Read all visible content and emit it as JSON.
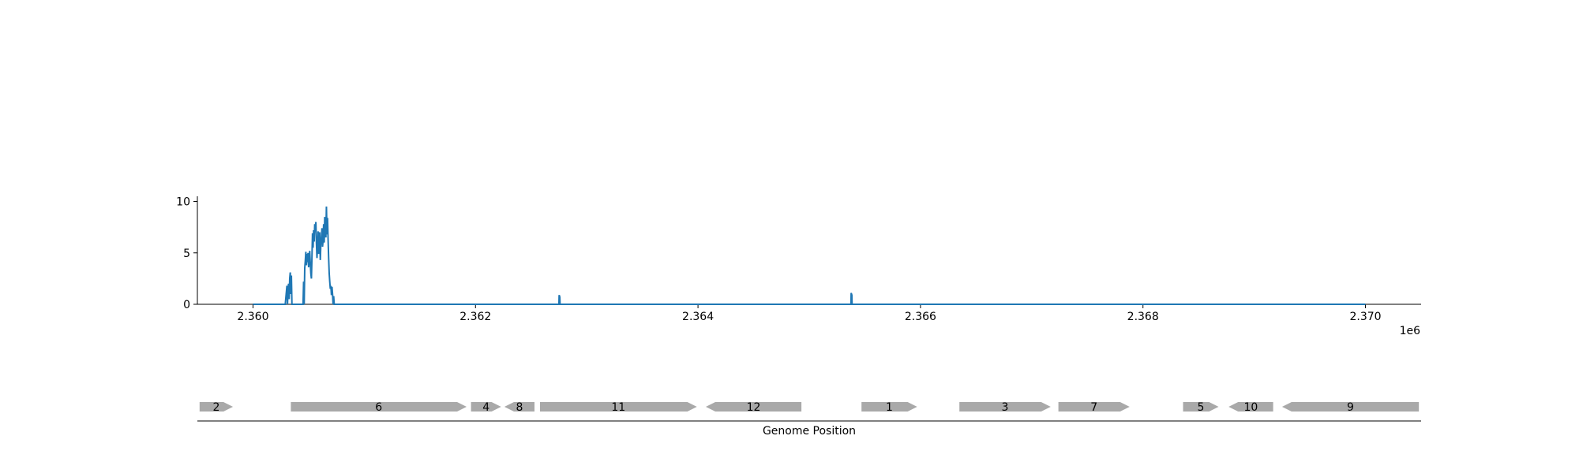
{
  "chart_data": {
    "type": "line",
    "title": "",
    "xlabel": "Genome Position",
    "ylabel": "",
    "x_offset_label": "1e6",
    "xlim": [
      2359500,
      2370500
    ],
    "ylim": [
      0,
      10.5
    ],
    "x_ticks": [
      2360000,
      2362000,
      2364000,
      2366000,
      2368000,
      2370000
    ],
    "x_tick_labels": [
      "2.360",
      "2.362",
      "2.364",
      "2.366",
      "2.368",
      "2.370"
    ],
    "y_ticks": [
      0,
      5,
      10
    ],
    "y_tick_labels": [
      "0",
      "5",
      "10"
    ],
    "grid": false,
    "legend": "none",
    "line_color": "#1f77b4",
    "series": [
      {
        "x": [
          2360000,
          2360290,
          2360300,
          2360305,
          2360310,
          2360315,
          2360320,
          2360325,
          2360330,
          2360335,
          2360340,
          2360345,
          2360350,
          2360355,
          2360360,
          2360400,
          2360450,
          2360455,
          2360460,
          2360465,
          2360470,
          2360475,
          2360480,
          2360485,
          2360490,
          2360495,
          2360500,
          2360505,
          2360510,
          2360515,
          2360520,
          2360525,
          2360530,
          2360535,
          2360540,
          2360545,
          2360550,
          2360555,
          2360560,
          2360565,
          2360570,
          2360575,
          2360580,
          2360585,
          2360590,
          2360595,
          2360600,
          2360605,
          2360610,
          2360615,
          2360620,
          2360625,
          2360630,
          2360635,
          2360640,
          2360645,
          2360650,
          2360655,
          2360660,
          2360665,
          2360670,
          2360675,
          2360680,
          2360685,
          2360690,
          2360695,
          2360700,
          2360705,
          2360710,
          2360715,
          2360720,
          2360725,
          2360730,
          2360735,
          2360740,
          2360745,
          2360750,
          2360755,
          2362750,
          2362752,
          2362758,
          2362760,
          2365375,
          2365377,
          2365383,
          2365385,
          2370000
        ],
        "y": [
          0,
          0,
          1.2,
          1.8,
          0,
          1.5,
          2.0,
          0.5,
          2.5,
          3.1,
          1.0,
          2.8,
          0,
          0,
          0,
          0,
          0,
          2.2,
          0,
          3.5,
          4.2,
          5.1,
          3.8,
          4.9,
          4.1,
          5.0,
          3.6,
          4.4,
          5.2,
          4.0,
          3.0,
          2.5,
          4.6,
          6.9,
          5.5,
          7.2,
          6.1,
          7.8,
          7.3,
          8.0,
          6.0,
          4.5,
          5.8,
          7.1,
          4.9,
          6.6,
          7.0,
          4.3,
          5.9,
          6.4,
          7.4,
          5.6,
          6.2,
          7.8,
          6.0,
          8.5,
          7.9,
          6.5,
          9.5,
          6.8,
          8.4,
          6.3,
          4.5,
          3.0,
          2.2,
          1.5,
          1.8,
          0.9,
          1.7,
          1.0,
          0,
          0.8,
          0,
          0,
          0,
          0,
          0,
          0,
          0,
          0.9,
          0.7,
          0,
          0,
          1.1,
          0.9,
          0,
          0
        ]
      }
    ],
    "genes": [
      {
        "label": "2",
        "start": 2359520,
        "end": 2359820,
        "strand": "+"
      },
      {
        "label": "6",
        "start": 2360340,
        "end": 2361920,
        "strand": "+"
      },
      {
        "label": "4",
        "start": 2361960,
        "end": 2362230,
        "strand": "+"
      },
      {
        "label": "8",
        "start": 2362260,
        "end": 2362530,
        "strand": "-"
      },
      {
        "label": "11",
        "start": 2362580,
        "end": 2363990,
        "strand": "+"
      },
      {
        "label": "12",
        "start": 2364070,
        "end": 2364930,
        "strand": "-"
      },
      {
        "label": "1",
        "start": 2365470,
        "end": 2365970,
        "strand": "+"
      },
      {
        "label": "3",
        "start": 2366350,
        "end": 2367170,
        "strand": "+"
      },
      {
        "label": "7",
        "start": 2367240,
        "end": 2367880,
        "strand": "+"
      },
      {
        "label": "5",
        "start": 2368360,
        "end": 2368680,
        "strand": "+"
      },
      {
        "label": "10",
        "start": 2368770,
        "end": 2369170,
        "strand": "-"
      },
      {
        "label": "9",
        "start": 2369250,
        "end": 2370480,
        "strand": "-"
      }
    ],
    "gene_color": "#a9a9a9"
  }
}
